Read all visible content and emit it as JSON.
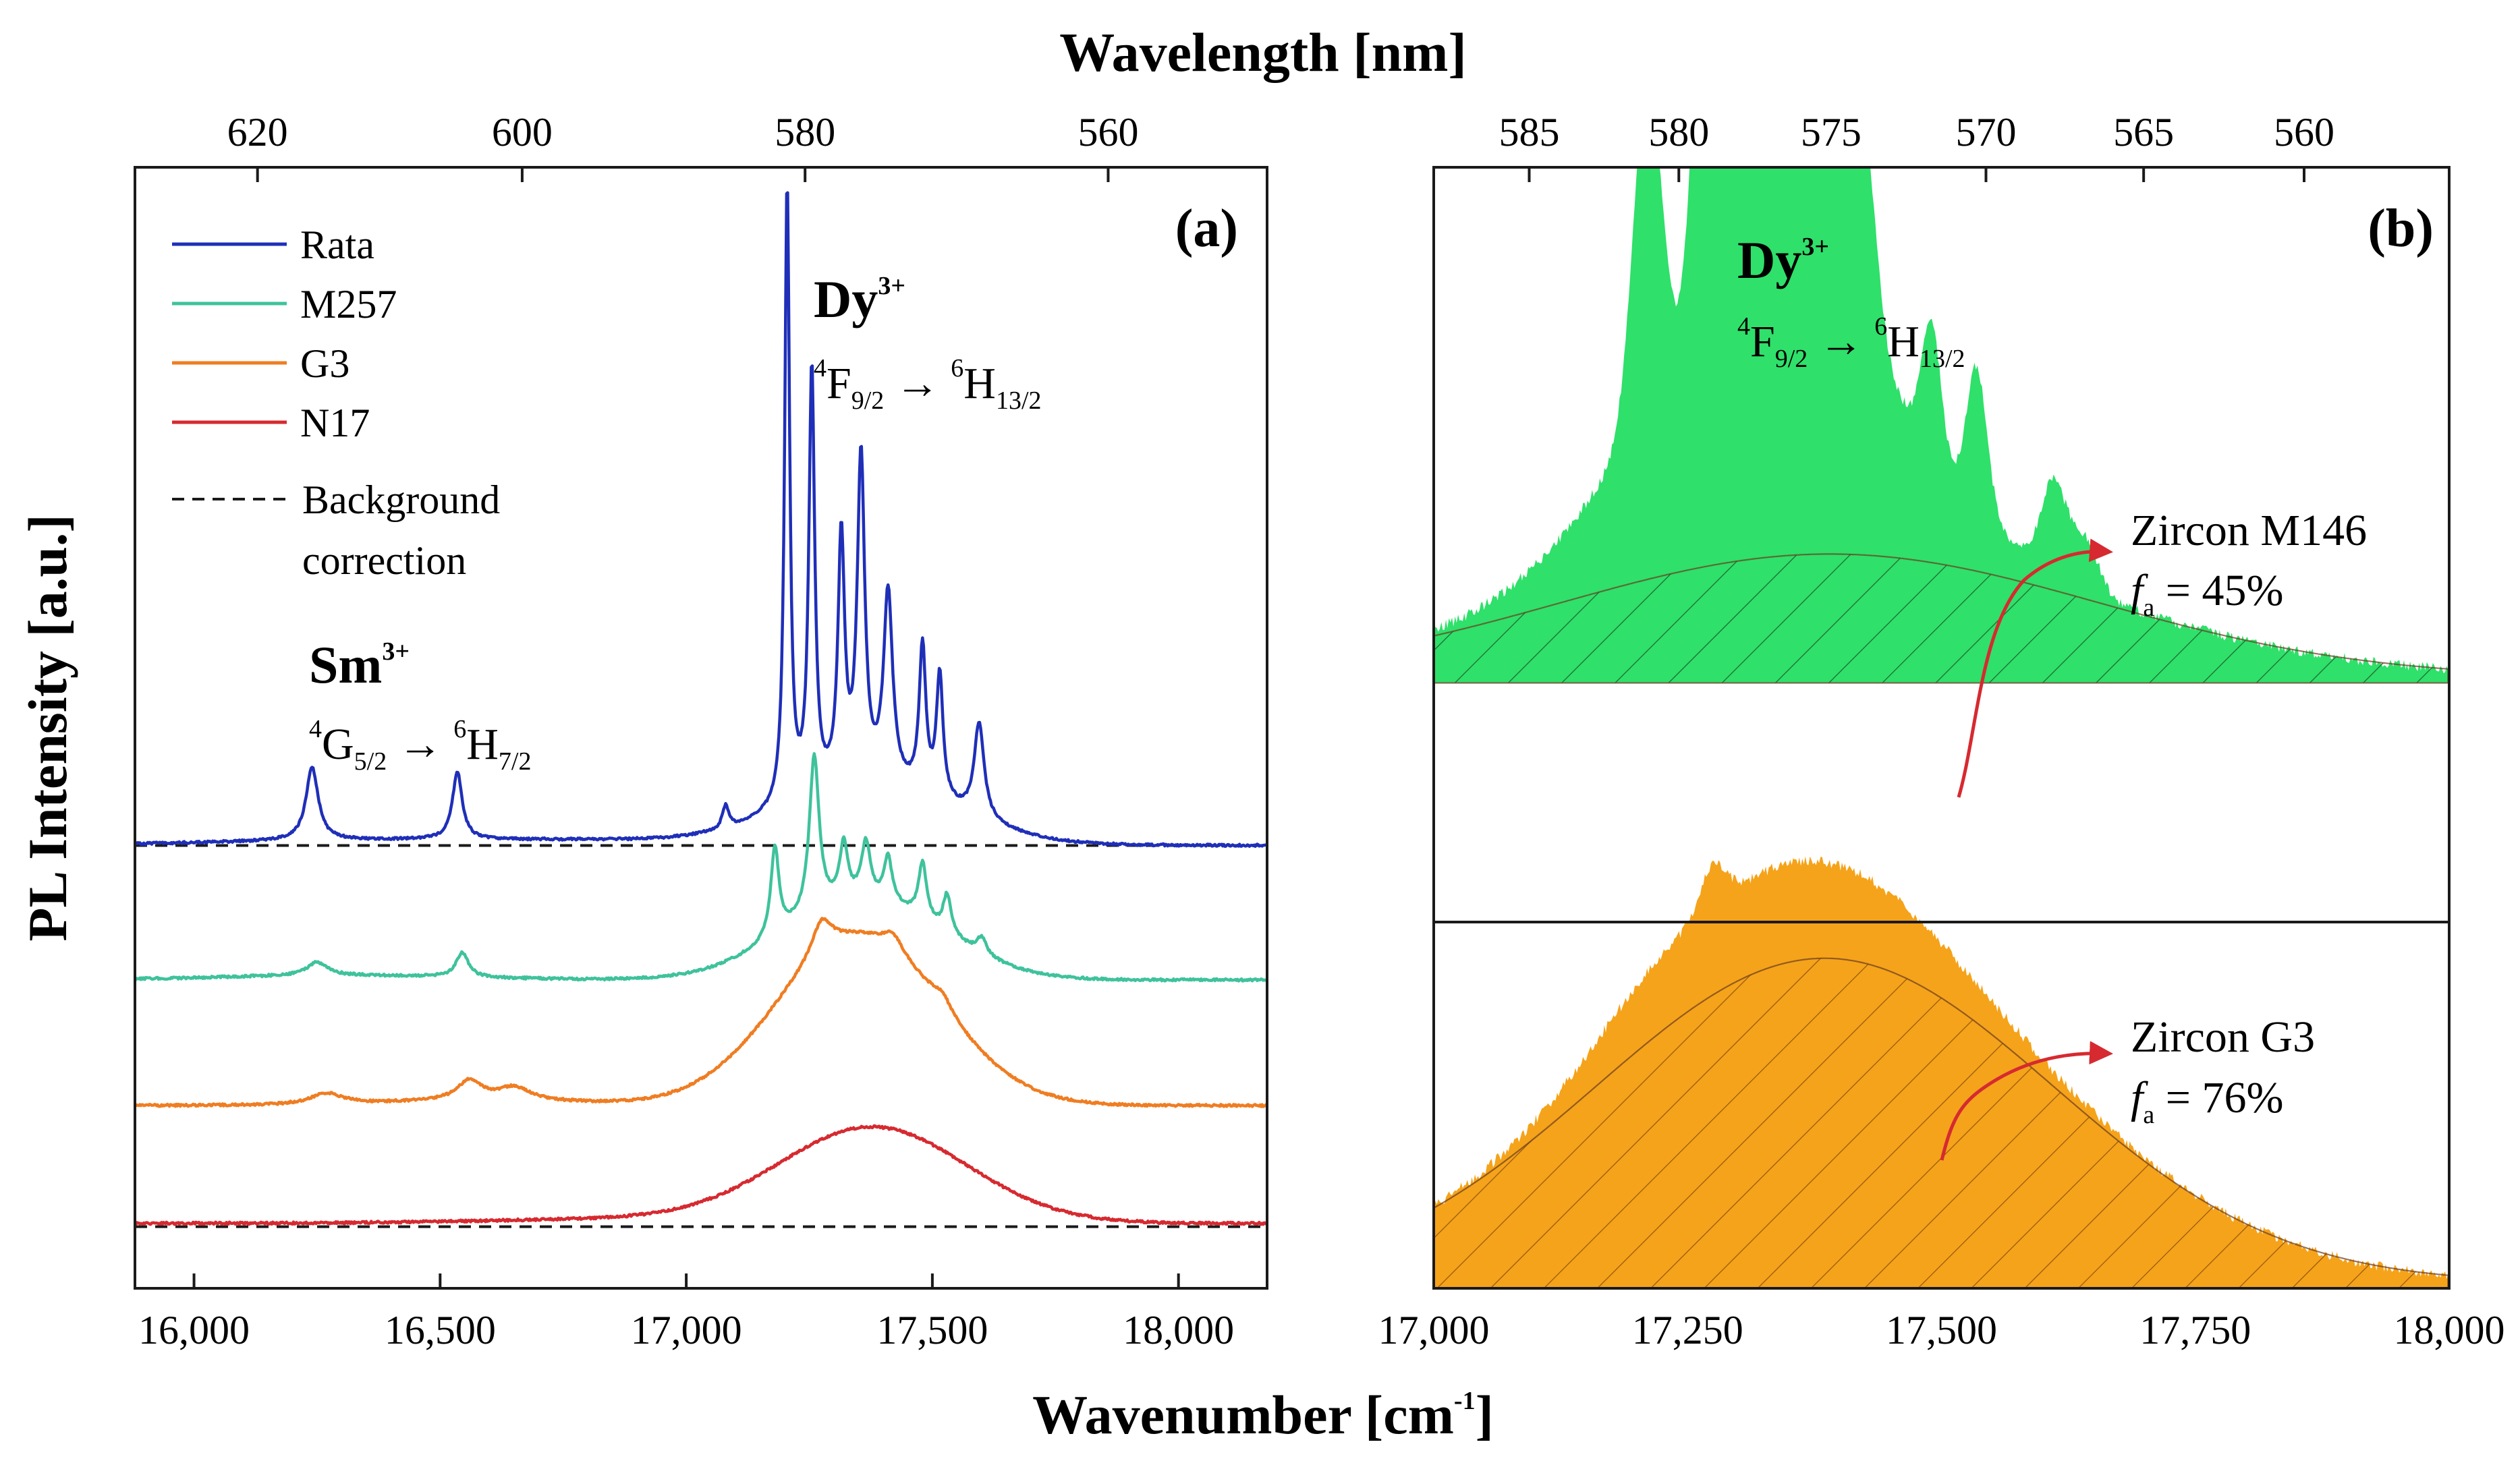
{
  "figure": {
    "top_axis_title": "Wavelength [nm]",
    "bottom_axis_title": "Wavenumber [cm",
    "bottom_axis_title_sup": "-1",
    "bottom_axis_title_end": "]",
    "y_axis_title": "PL Intensity [a.u.]"
  },
  "chart_data": [
    {
      "id": "a",
      "type": "line",
      "panel_label": "(a)",
      "xlabel": "Wavenumber [cm-1]",
      "x2label": "Wavelength [nm]",
      "ylabel": "PL Intensity [a.u.]",
      "xlim": [
        15880,
        18180
      ],
      "xticks": [
        16000,
        16500,
        17000,
        17500,
        18000
      ],
      "xtick_labels": [
        "16,000",
        "16,500",
        "17,000",
        "17,500",
        "18,000"
      ],
      "top_ticks_nm": [
        620,
        600,
        580,
        560
      ],
      "top_tick_labels": [
        "620",
        "600",
        "580",
        "560"
      ],
      "ylim": [
        0,
        1
      ],
      "y_ticks_shown": false,
      "legend": {
        "placement": "top-left",
        "entries": [
          {
            "label": "Rata",
            "color": "#1f2fb8",
            "style": "solid"
          },
          {
            "label": "M257",
            "color": "#3fc29c",
            "style": "solid"
          },
          {
            "label": "G3",
            "color": "#ef7d22",
            "style": "solid"
          },
          {
            "label": "N17",
            "color": "#d62a30",
            "style": "solid"
          }
        ],
        "background_label_1": "Background",
        "background_label_2": "correction"
      },
      "series": [
        {
          "name": "Rata",
          "color": "#1f2fb8",
          "baseline": 0.395,
          "peaks": [
            [
              16240,
              0.065,
              15
            ],
            [
              16535,
              0.06,
              12
            ],
            [
              17080,
              0.02,
              8
            ],
            [
              17205,
              0.555,
              6
            ],
            [
              17255,
              0.38,
              7
            ],
            [
              17315,
              0.22,
              8
            ],
            [
              17355,
              0.29,
              9
            ],
            [
              17410,
              0.17,
              11
            ],
            [
              17480,
              0.13,
              8
            ],
            [
              17515,
              0.11,
              8
            ],
            [
              17595,
              0.085,
              12
            ]
          ],
          "broad": [
            [
              17380,
              0.05,
              170
            ],
            [
              16300,
              0.004,
              300
            ],
            [
              16850,
              0.004,
              300
            ]
          ]
        },
        {
          "name": "M257",
          "color": "#3fc29c",
          "baseline": 0.275,
          "peaks": [
            [
              16250,
              0.012,
              25
            ],
            [
              16545,
              0.022,
              15
            ],
            [
              17180,
              0.08,
              10
            ],
            [
              17260,
              0.14,
              12
            ],
            [
              17320,
              0.05,
              10
            ],
            [
              17365,
              0.05,
              11
            ],
            [
              17410,
              0.04,
              10
            ],
            [
              17480,
              0.05,
              10
            ],
            [
              17530,
              0.035,
              10
            ],
            [
              17600,
              0.015,
              12
            ]
          ],
          "broad": [
            [
              17360,
              0.07,
              160
            ],
            [
              16300,
              0.004,
              250
            ]
          ]
        },
        {
          "name": "G3",
          "color": "#ef7d22",
          "baseline": 0.163,
          "peaks": [
            [
              16270,
              0.01,
              40
            ],
            [
              16560,
              0.018,
              30
            ],
            [
              16650,
              0.012,
              40
            ],
            [
              17275,
              0.03,
              25
            ],
            [
              17420,
              0.015,
              25
            ],
            [
              17520,
              0.012,
              25
            ]
          ],
          "broad": [
            [
              17350,
              0.15,
              165
            ],
            [
              16600,
              0.004,
              200
            ]
          ]
        },
        {
          "name": "N17",
          "color": "#d62a30",
          "baseline": 0.058,
          "peaks": [],
          "broad": [
            [
              17380,
              0.085,
              190
            ],
            [
              16900,
              0.004,
              300
            ]
          ]
        }
      ],
      "background_lines": [
        {
          "name": "Background correction (Rata)",
          "y": 0.395,
          "style": "dashed"
        },
        {
          "name": "Background correction (N17)",
          "y": 0.055,
          "style": "dashed"
        }
      ],
      "annotations": [
        {
          "ion": "Sm",
          "ion_sup": "3+",
          "t1": "4",
          "t2": "G",
          "t3": "5/2",
          "t4": "6",
          "t5": "H",
          "t6": "7/2"
        },
        {
          "ion": "Dy",
          "ion_sup": "3+",
          "t1": "4",
          "t2": "F",
          "t3": "9/2",
          "t4": "6",
          "t5": "H",
          "t6": "13/2"
        }
      ]
    },
    {
      "id": "b",
      "type": "area",
      "panel_label": "(b)",
      "xlabel": "Wavenumber [cm-1]",
      "x2label": "Wavelength [nm]",
      "xlim": [
        17000,
        18000
      ],
      "xticks": [
        17000,
        17250,
        17500,
        17750,
        18000
      ],
      "xtick_labels": [
        "17,000",
        "17,250",
        "17,500",
        "17,750",
        "18,000"
      ],
      "top_ticks_nm": [
        585,
        580,
        575,
        570,
        565,
        560
      ],
      "top_tick_labels": [
        "585",
        "580",
        "575",
        "570",
        "565",
        "560"
      ],
      "ylim": [
        0,
        1
      ],
      "y_ticks_shown": false,
      "annotations": [
        {
          "ion": "Dy",
          "ion_sup": "3+",
          "t1": "4",
          "t2": "F",
          "t3": "9/2",
          "t4": "6",
          "t5": "H",
          "t6": "13/2"
        }
      ],
      "series": [
        {
          "name": "Zircon M146",
          "fill": "#2fe06a",
          "fa_symbol": "f",
          "fa_sub": "a",
          "fa_value": " = 45%",
          "range": [
            0.54,
            1.0
          ],
          "peaks": [
            [
              17210,
              0.63,
              14
            ],
            [
              17265,
              0.65,
              11
            ],
            [
              17300,
              0.3,
              14
            ],
            [
              17340,
              0.34,
              22
            ],
            [
              17375,
              0.5,
              20
            ],
            [
              17420,
              0.45,
              14
            ],
            [
              17490,
              0.25,
              9
            ],
            [
              17535,
              0.27,
              10
            ],
            [
              17610,
              0.17,
              12
            ],
            [
              17640,
              0.1,
              14
            ]
          ],
          "broad": [
            [
              17330,
              0.55,
              120
            ]
          ],
          "background": {
            "center": 17390,
            "amp": 0.24,
            "sigma": 265
          }
        },
        {
          "name": "Zircon G3",
          "fill": "#f5a31a",
          "fa_symbol": "f",
          "fa_sub": "a",
          "fa_value": " = 76%",
          "range": [
            0.0,
            0.46
          ],
          "peaks": [
            [
              17275,
              0.08,
              12
            ]
          ],
          "broad": [
            [
              17360,
              0.19,
              130
            ],
            [
              17210,
              0.04,
              60
            ]
          ],
          "background": {
            "center": 17385,
            "amp": 0.63,
            "sigma": 225
          }
        }
      ]
    }
  ]
}
